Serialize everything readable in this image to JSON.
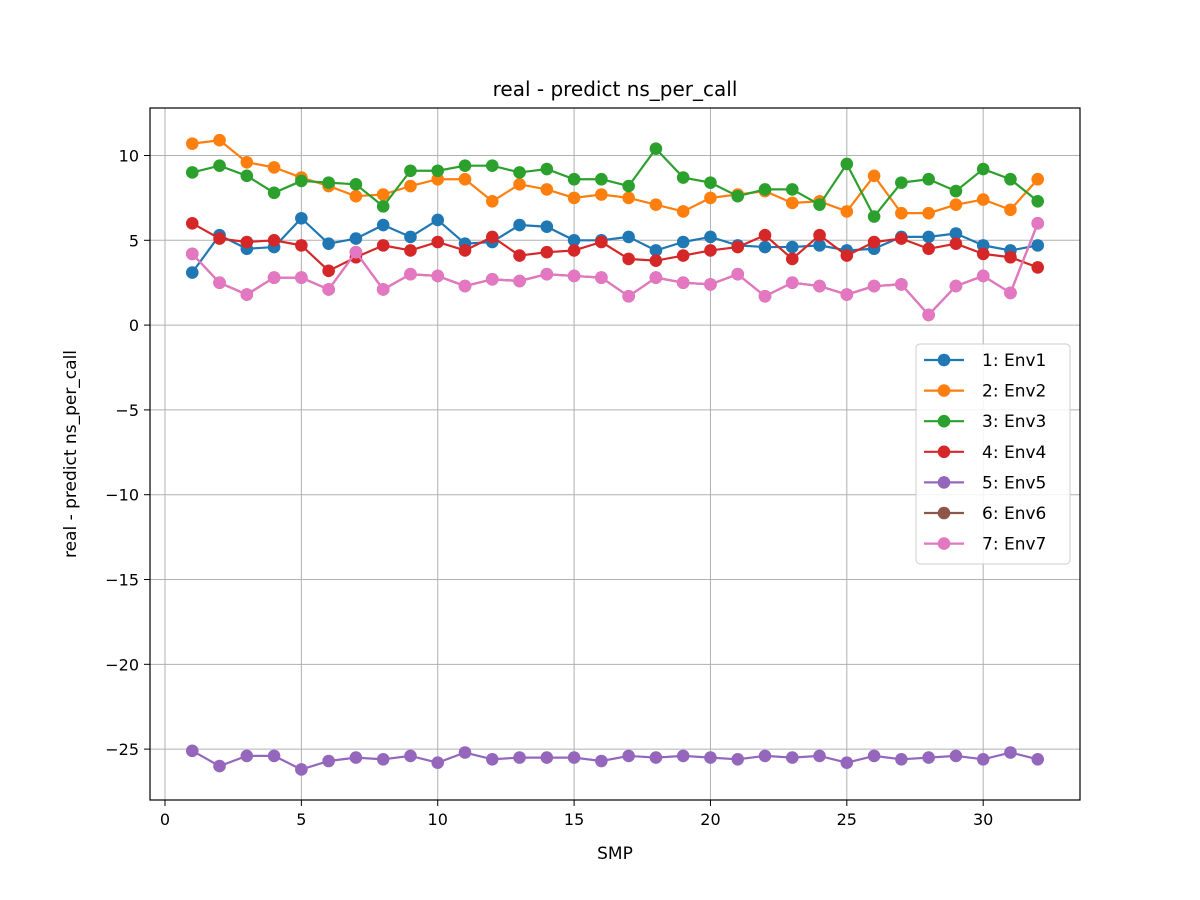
{
  "chart_data": {
    "type": "line",
    "title": "real - predict ns_per_call",
    "xlabel": "SMP",
    "ylabel": "real - predict ns_per_call",
    "xlim": [
      -0.55,
      33.55
    ],
    "ylim": [
      -28.0,
      12.8
    ],
    "xticks": [
      0,
      5,
      10,
      15,
      20,
      25,
      30
    ],
    "yticks": [
      -25,
      -20,
      -15,
      -10,
      -5,
      0,
      5,
      10
    ],
    "ytick_labels": [
      "−25",
      "−20",
      "−15",
      "−10",
      "−5",
      "0",
      "5",
      "10"
    ],
    "grid": true,
    "legend_position": "center-right",
    "x": [
      1,
      2,
      3,
      4,
      5,
      6,
      7,
      8,
      9,
      10,
      11,
      12,
      13,
      14,
      15,
      16,
      17,
      18,
      19,
      20,
      21,
      22,
      23,
      24,
      25,
      26,
      27,
      28,
      29,
      30,
      31,
      32
    ],
    "series": [
      {
        "name": "1: Env1",
        "color": "#1f77b4",
        "values": [
          3.1,
          5.3,
          4.5,
          4.6,
          6.3,
          4.8,
          5.1,
          5.9,
          5.2,
          6.2,
          4.8,
          4.9,
          5.9,
          5.8,
          5.0,
          5.0,
          5.2,
          4.4,
          4.9,
          5.2,
          4.7,
          4.6,
          4.6,
          4.7,
          4.4,
          4.5,
          5.2,
          5.2,
          5.4,
          4.7,
          4.4,
          4.7
        ]
      },
      {
        "name": "2: Env2",
        "color": "#ff7f0e",
        "values": [
          10.7,
          10.9,
          9.6,
          9.3,
          8.7,
          8.2,
          7.6,
          7.7,
          8.2,
          8.6,
          8.6,
          7.3,
          8.3,
          8.0,
          7.5,
          7.7,
          7.5,
          7.1,
          6.7,
          7.5,
          7.7,
          7.9,
          7.2,
          7.3,
          6.7,
          8.8,
          6.6,
          6.6,
          7.1,
          7.4,
          6.8,
          8.6
        ]
      },
      {
        "name": "3: Env3",
        "color": "#2ca02c",
        "values": [
          9.0,
          9.4,
          8.8,
          7.8,
          8.5,
          8.4,
          8.3,
          7.0,
          9.1,
          9.1,
          9.4,
          9.4,
          9.0,
          9.2,
          8.6,
          8.6,
          8.2,
          10.4,
          8.7,
          8.4,
          7.6,
          8.0,
          8.0,
          7.1,
          9.5,
          6.4,
          8.4,
          8.6,
          7.9,
          9.2,
          8.6,
          7.3
        ]
      },
      {
        "name": "4: Env4",
        "color": "#d62728",
        "values": [
          6.0,
          5.1,
          4.9,
          5.0,
          4.7,
          3.2,
          4.0,
          4.7,
          4.4,
          4.9,
          4.4,
          5.2,
          4.1,
          4.3,
          4.4,
          4.9,
          3.9,
          3.8,
          4.1,
          4.4,
          4.6,
          5.3,
          3.9,
          5.3,
          4.1,
          4.9,
          5.1,
          4.5,
          4.8,
          4.2,
          4.0,
          3.4
        ]
      },
      {
        "name": "5: Env5",
        "color": "#9467bd",
        "values": [
          -25.1,
          -26.0,
          -25.4,
          -25.4,
          -26.2,
          -25.7,
          -25.5,
          -25.6,
          -25.4,
          -25.8,
          -25.2,
          -25.6,
          -25.5,
          -25.5,
          -25.5,
          -25.7,
          -25.4,
          -25.5,
          -25.4,
          -25.5,
          -25.6,
          -25.4,
          -25.5,
          -25.4,
          -25.8,
          -25.4,
          -25.6,
          -25.5,
          -25.4,
          -25.6,
          -25.2,
          -25.6
        ]
      },
      {
        "name": "6: Env6",
        "color": "#8c564b",
        "values": [
          4.2,
          2.5,
          1.8,
          2.8,
          2.8,
          2.1,
          4.3,
          2.1,
          3.0,
          2.9,
          2.3,
          2.7,
          2.6,
          3.0,
          2.9,
          2.8,
          1.7,
          2.8,
          2.5,
          2.4,
          3.0,
          1.7,
          2.5,
          2.3,
          1.8,
          2.3,
          2.4,
          0.6,
          2.3,
          2.9,
          1.9,
          6.0
        ]
      },
      {
        "name": "7: Env7",
        "color": "#e377c2",
        "values": [
          4.2,
          2.5,
          1.8,
          2.8,
          2.8,
          2.1,
          4.3,
          2.1,
          3.0,
          2.9,
          2.3,
          2.7,
          2.6,
          3.0,
          2.9,
          2.8,
          1.7,
          2.8,
          2.5,
          2.4,
          3.0,
          1.7,
          2.5,
          2.3,
          1.8,
          2.3,
          2.4,
          0.6,
          2.3,
          2.9,
          1.9,
          6.0
        ]
      }
    ]
  }
}
